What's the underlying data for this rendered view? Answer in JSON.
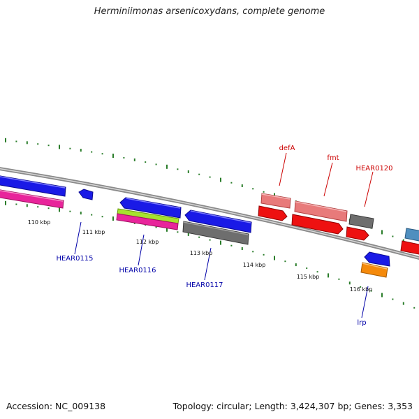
{
  "title": "Herminiimonas arsenicoxydans, complete genome",
  "ticks": [
    "110 kbp",
    "111 kbp",
    "112 kbp",
    "113 kbp",
    "114 kbp",
    "115 kbp",
    "116 kbp"
  ],
  "gene_labels": [
    "defA",
    "fmt",
    "HEAR0120",
    "HEAR0115",
    "HEAR0116",
    "HEAR0117",
    "lrp"
  ],
  "colors": {
    "blue": "#1a1ae6",
    "magenta": "#e8259b",
    "lime": "#a6e22e",
    "gray": "#6e6e6e",
    "salmon": "#e87a7a",
    "red": "#ee1111",
    "orange": "#f58a0b",
    "steelblue": "#4f8fbf",
    "tick_green": "#2a7d2a",
    "label_red": "#cc0000",
    "label_blue": "#0000a8"
  },
  "footer": {
    "accession": "Accession: NC_009138",
    "summary": "Topology: circular; Length: 3,424,307 bp; Genes: 3,353"
  }
}
